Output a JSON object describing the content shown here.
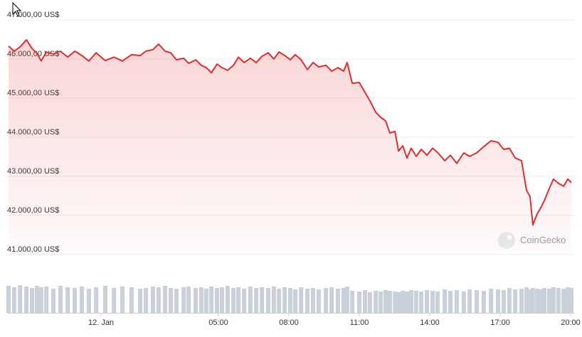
{
  "chart_data": [
    {
      "type": "line",
      "color": "#dc2f2f",
      "grid": true,
      "watermark": "CoinGecko",
      "x": [
        -3.94,
        -3.7,
        -3.45,
        -3.18,
        -2.94,
        -2.73,
        -2.55,
        -2.33,
        -2.03,
        -1.73,
        -1.42,
        -1.12,
        -0.82,
        -0.52,
        -0.21,
        0.18,
        0.55,
        0.91,
        1.3,
        1.67,
        1.91,
        2.21,
        2.45,
        2.73,
        2.97,
        3.21,
        3.52,
        3.73,
        4.03,
        4.27,
        4.48,
        4.7,
        4.94,
        5.15,
        5.39,
        5.64,
        5.85,
        6.09,
        6.36,
        6.61,
        6.85,
        7.12,
        7.36,
        7.58,
        7.82,
        8.06,
        8.27,
        8.52,
        8.79,
        9.03,
        9.27,
        9.58,
        9.82,
        10.09,
        10.33,
        10.48,
        10.7,
        11.0,
        11.24,
        11.45,
        11.7,
        11.91,
        12.12,
        12.3,
        12.52,
        12.67,
        12.85,
        13.03,
        13.21,
        13.42,
        13.64,
        13.88,
        14.12,
        14.33,
        14.64,
        14.88,
        15.15,
        15.45,
        15.7,
        16.0,
        16.3,
        16.61,
        16.91,
        17.15,
        17.39,
        17.64,
        17.91,
        18.12,
        18.27,
        18.39,
        18.58,
        18.73,
        18.88,
        19.09,
        19.27,
        19.48,
        19.7,
        19.88,
        20.03
      ],
      "values": [
        46330,
        46200,
        46310,
        46490,
        46270,
        46150,
        45950,
        46180,
        46130,
        46200,
        46050,
        46200,
        46090,
        45950,
        46160,
        45960,
        46050,
        45950,
        46110,
        46090,
        46200,
        46240,
        46380,
        46200,
        46160,
        45980,
        46020,
        45890,
        45980,
        45840,
        45780,
        45650,
        45870,
        45780,
        45710,
        45840,
        46050,
        45910,
        46020,
        45910,
        46070,
        46160,
        46000,
        46180,
        46090,
        45980,
        46110,
        45980,
        45730,
        45910,
        45800,
        45840,
        45690,
        45780,
        45690,
        45910,
        45380,
        45400,
        45150,
        44930,
        44640,
        44510,
        44420,
        44110,
        44150,
        43650,
        43780,
        43470,
        43720,
        43510,
        43690,
        43540,
        43720,
        43610,
        43400,
        43540,
        43330,
        43600,
        43510,
        43600,
        43760,
        43910,
        43870,
        43690,
        43720,
        43470,
        43400,
        42640,
        42490,
        41760,
        42050,
        42200,
        42380,
        42690,
        42930,
        42820,
        42750,
        42930,
        42840
      ],
      "xlim": [
        -3.94,
        20.03
      ],
      "xticks": [
        {
          "value": 0,
          "label": "12. Jan"
        },
        {
          "value": 5,
          "label": "05:00"
        },
        {
          "value": 8,
          "label": "08:00"
        },
        {
          "value": 11,
          "label": "11:00"
        },
        {
          "value": 14,
          "label": "14:00"
        },
        {
          "value": 17,
          "label": "17:00"
        },
        {
          "value": 20,
          "label": "20:00"
        }
      ],
      "ylim": [
        41000,
        47000
      ],
      "yticks": [
        {
          "value": 41000,
          "label": "41.000,00 US$"
        },
        {
          "value": 42000,
          "label": "42.000,00 US$"
        },
        {
          "value": 43000,
          "label": "43.000,00 US$"
        },
        {
          "value": 44000,
          "label": "44.000,00 US$"
        },
        {
          "value": 45000,
          "label": "45.000,00 US$"
        },
        {
          "value": 46000,
          "label": "46.000,00 US$"
        },
        {
          "value": 47000,
          "label": "47.000,00 US$"
        }
      ]
    },
    {
      "type": "bar",
      "color": "#c9d0da",
      "ylim": [
        0,
        40
      ],
      "values": [
        38,
        36,
        39,
        37,
        35,
        38,
        36,
        37,
        34,
        38,
        36,
        35,
        37,
        34,
        36,
        38,
        35,
        37,
        36,
        34,
        35,
        37,
        36,
        38,
        35,
        34,
        36,
        37,
        35,
        36,
        34,
        37,
        35,
        36,
        38,
        35,
        36,
        34,
        37,
        35,
        36,
        35,
        37,
        34,
        36,
        35,
        33,
        36,
        34,
        35,
        33,
        35,
        36,
        34,
        35,
        37,
        31,
        30,
        32,
        29,
        31,
        30,
        32,
        31,
        30,
        29,
        31,
        30,
        32,
        31,
        30,
        32,
        31,
        30,
        33,
        31,
        32,
        30,
        33,
        32,
        31,
        34,
        33,
        32,
        35,
        33,
        34,
        36,
        33,
        35,
        34,
        33,
        35,
        34,
        36,
        35,
        34,
        36,
        35
      ]
    }
  ]
}
